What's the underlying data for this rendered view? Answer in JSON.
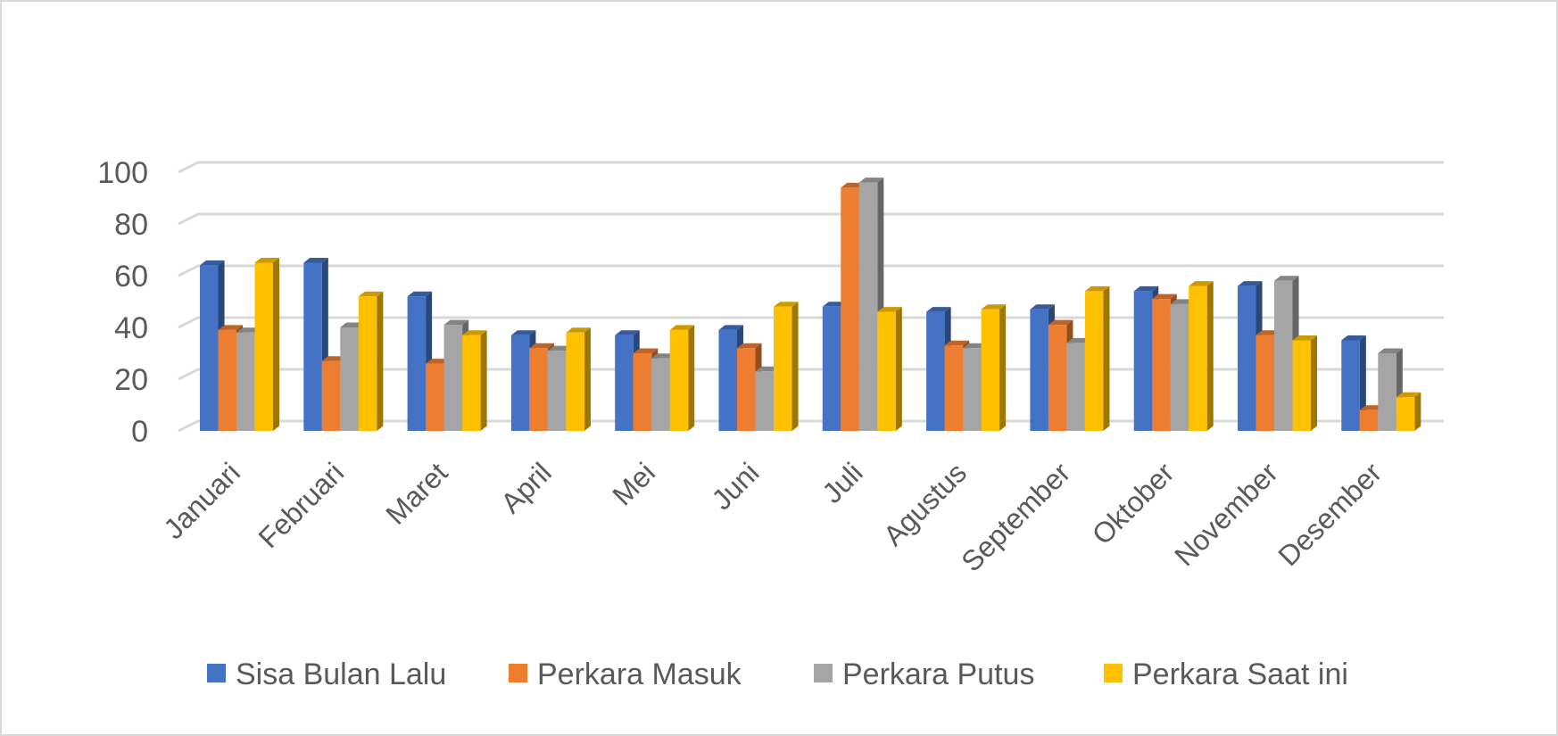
{
  "chart_data": {
    "type": "bar",
    "title": "",
    "xlabel": "",
    "ylabel": "",
    "ylim": [
      0,
      100
    ],
    "yticks": [
      "0",
      "20",
      "40",
      "60",
      "80",
      "100"
    ],
    "grid": true,
    "legend_position": "bottom",
    "categories": [
      "Januari",
      "Februari",
      "Maret",
      "April",
      "Mei",
      "Juni",
      "Juli",
      "Agustus",
      "September",
      "Oktober",
      "November",
      "Desember"
    ],
    "series": [
      {
        "name": "Sisa Bulan Lalu",
        "color": "#4472c4",
        "values": [
          64,
          65,
          52,
          37,
          37,
          39,
          48,
          46,
          47,
          54,
          56,
          35
        ]
      },
      {
        "name": "Perkara Masuk",
        "color": "#ed7d31",
        "values": [
          39,
          27,
          26,
          32,
          30,
          32,
          94,
          33,
          41,
          51,
          37,
          8
        ]
      },
      {
        "name": "Perkara Putus",
        "color": "#a5a5a5",
        "values": [
          38,
          40,
          41,
          31,
          28,
          23,
          96,
          32,
          34,
          49,
          58,
          30
        ]
      },
      {
        "name": "Perkara Saat ini",
        "color": "#ffc000",
        "values": [
          65,
          52,
          37,
          38,
          39,
          48,
          46,
          47,
          54,
          56,
          35,
          13
        ]
      }
    ]
  }
}
